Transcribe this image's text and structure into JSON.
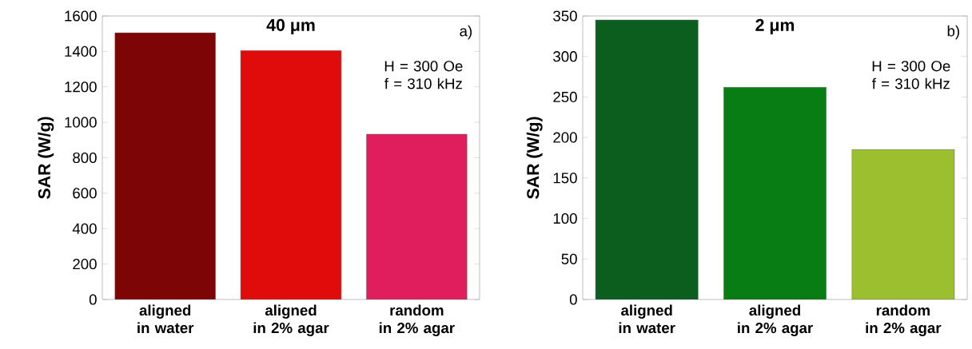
{
  "chart_data": [
    {
      "type": "bar",
      "title": "**40 μm**",
      "ylabel": "SAR (W/g)",
      "categories": [
        "aligned\nin water",
        "aligned\nin 2% agar",
        "random\nin 2% agar"
      ],
      "values": [
        1505,
        1405,
        933
      ],
      "colors": [
        "#7d0505",
        "#e00c0c",
        "#e01e5e"
      ],
      "ylim": [
        0,
        1600
      ],
      "yticks": [
        0,
        200,
        400,
        600,
        800,
        1000,
        1200,
        1400,
        1600
      ],
      "grid": false,
      "annotations": [
        "a)",
        "H = 300 Oe\nf = 310 kHz"
      ]
    },
    {
      "type": "bar",
      "title": "**2 μm**",
      "ylabel": "SAR (W/g)",
      "categories": [
        "aligned\nin water",
        "aligned\nin 2% agar",
        "random\nin 2% agar"
      ],
      "values": [
        345,
        262,
        185
      ],
      "colors": [
        "#0b5e1e",
        "#087d14",
        "#9bbf2e"
      ],
      "ylim": [
        0,
        350
      ],
      "yticks": [
        0,
        50,
        100,
        150,
        200,
        250,
        300,
        350
      ],
      "grid": false,
      "annotations": [
        "b)",
        "H = 300 Oe\nf = 310 kHz"
      ]
    }
  ]
}
